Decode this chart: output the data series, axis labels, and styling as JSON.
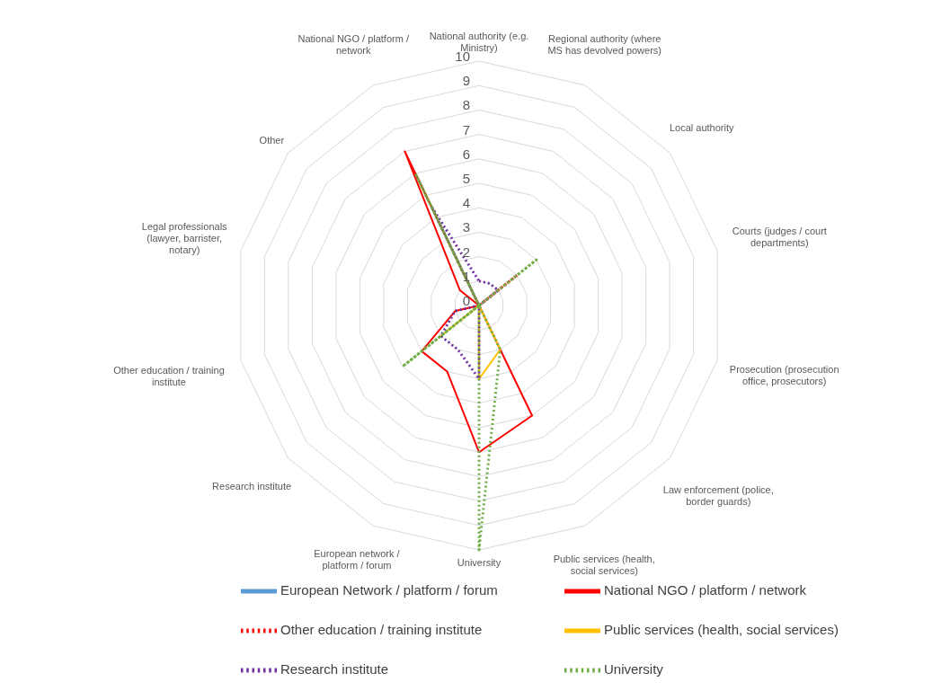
{
  "chart_data": {
    "type": "radar",
    "categories": [
      "National authority (e.g. Ministry)",
      "Regional authority (where MS has devolved powers)",
      "Local authority",
      "Courts (judges / court departments)",
      "Prosecution (prosecution office, prosecutors)",
      "Law enforcement (police, border guards)",
      "Public services (health, social services)",
      "University",
      "European network / platform / forum",
      "Research institute",
      "Other education / training institute",
      "Legal professionals (lawyer, barrister, notary)",
      "Other",
      "National NGO / platform / network"
    ],
    "series": [
      {
        "name": "European Network / platform / forum",
        "color": "#5b9bd5",
        "line_style": "solid",
        "values": [
          0,
          0,
          0,
          0,
          0,
          0,
          0,
          0,
          0,
          0,
          0,
          0,
          0,
          6
        ]
      },
      {
        "name": "National NGO / platform / network",
        "color": "#ff0000",
        "line_style": "solid",
        "values": [
          0,
          0,
          0,
          0,
          0,
          0,
          5,
          6,
          3,
          3,
          1,
          0,
          1,
          7
        ]
      },
      {
        "name": "Other education / training institute",
        "color": "#ff0000",
        "line_style": "dotted",
        "values": [
          0,
          0,
          2,
          0,
          0,
          0,
          0,
          0,
          0,
          0,
          0,
          0,
          0,
          0
        ]
      },
      {
        "name": "Public services (health, social services)",
        "color": "#ffc000",
        "line_style": "solid",
        "values": [
          0,
          0,
          0,
          0,
          0,
          0,
          2,
          3,
          0,
          2,
          0,
          0,
          0,
          0
        ]
      },
      {
        "name": "Research institute",
        "color": "#7030a0",
        "line_style": "dotted",
        "values": [
          1,
          1,
          1,
          0,
          0,
          0,
          0,
          3,
          2,
          2,
          1,
          0,
          0,
          4.5
        ]
      },
      {
        "name": "University",
        "color": "#70ad47",
        "line_style": "dotted",
        "values": [
          0,
          0,
          3,
          0,
          0,
          0,
          2,
          10,
          0,
          4,
          0,
          0,
          0,
          6
        ]
      }
    ],
    "ylim": [
      0,
      10
    ],
    "yticks": [
      0,
      1,
      2,
      3,
      4,
      5,
      6,
      7,
      8,
      9,
      10
    ],
    "grid": true,
    "legend": "bottom",
    "marker": "none"
  }
}
